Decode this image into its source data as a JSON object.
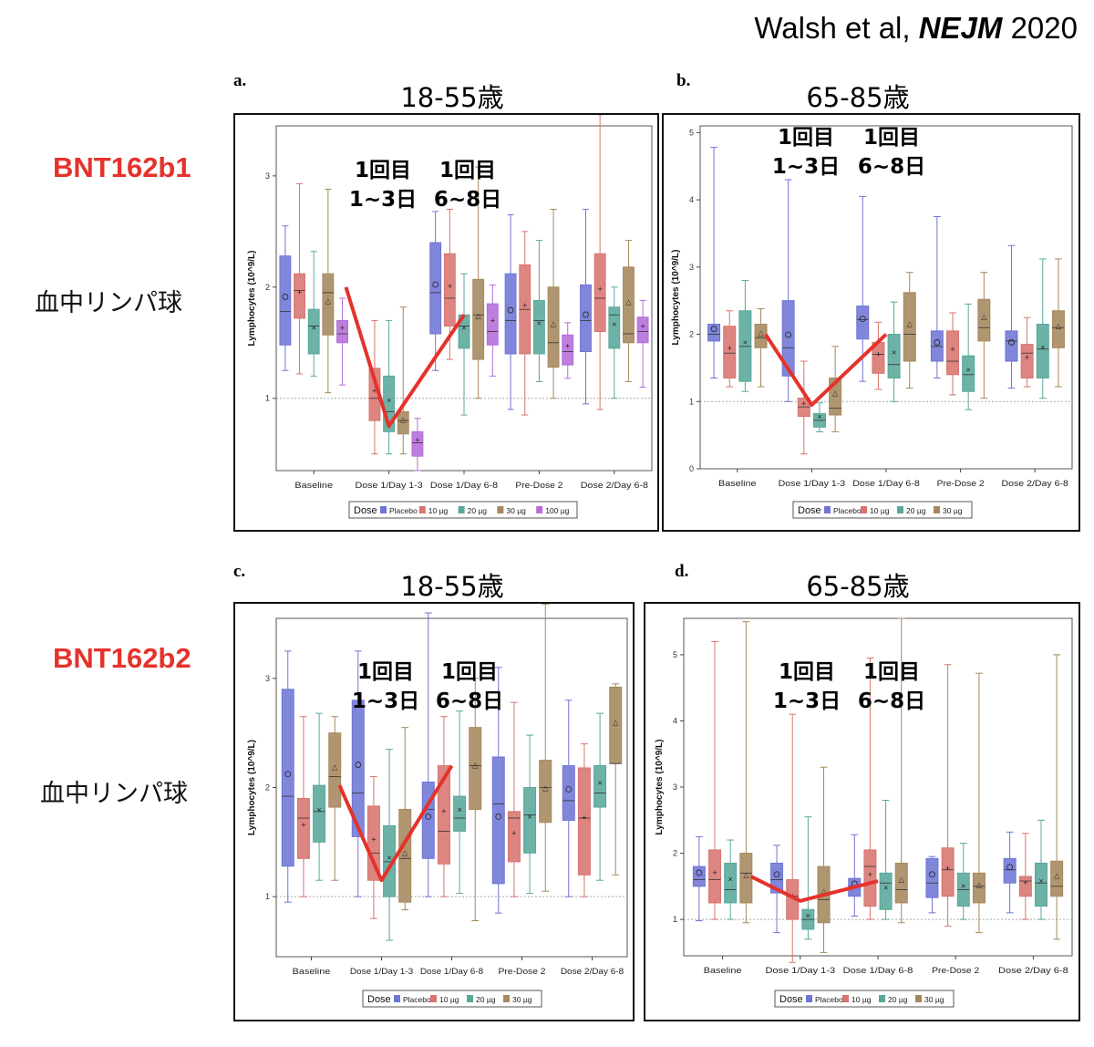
{
  "citation": {
    "authors": "Walsh et al, ",
    "journal": "NEJM",
    "year": " 2020"
  },
  "rows": [
    {
      "label": "BNT162b1",
      "sublabel": "血中リンパ球"
    },
    {
      "label": "BNT162b2",
      "sublabel": "血中リンパ球"
    }
  ],
  "colors": {
    "placebo": "#6f75d4",
    "d10": "#d8746f",
    "d20": "#59a79a",
    "d30": "#a5885d",
    "d100": "#b46cd9",
    "trend": "#e5322b",
    "row_label": "#e5322b"
  },
  "chart_data": [
    {
      "panel": "a.",
      "title": "18-55歳",
      "type": "box",
      "ylabel": "Lymphocytes (10^9/L)",
      "ylim": [
        0.35,
        3.45
      ],
      "yticks": [
        1,
        2,
        3
      ],
      "reference_line": 1,
      "categories": [
        "Baseline",
        "Dose 1/Day 1-3",
        "Dose 1/Day 6-8",
        "Pre-Dose 2",
        "Dose 2/Day 6-8"
      ],
      "legend_title": "Dose",
      "annotations": [
        {
          "line1": "1回目",
          "line2": "1~3日"
        },
        {
          "line1": "1回目",
          "line2": "6~8日"
        }
      ],
      "trend": [
        2.0,
        0.75,
        1.75
      ],
      "series": [
        {
          "name": "Placebo",
          "color": "#6f75d4",
          "boxes": [
            [
              1.25,
              1.48,
              1.78,
              2.28,
              2.55
            ],
            null,
            [
              1.25,
              1.58,
              1.95,
              2.4,
              2.68
            ],
            [
              0.9,
              1.4,
              1.7,
              2.12,
              2.65
            ],
            [
              0.95,
              1.42,
              1.7,
              2.02,
              2.7
            ]
          ]
        },
        {
          "name": "10 µg",
          "color": "#d8746f",
          "boxes": [
            [
              1.22,
              1.72,
              1.97,
              2.12,
              2.93
            ],
            [
              0.5,
              0.8,
              1.0,
              1.27,
              1.7
            ],
            [
              1.35,
              1.65,
              1.9,
              2.3,
              2.7
            ],
            [
              0.85,
              1.4,
              1.8,
              2.2,
              2.5
            ],
            [
              0.9,
              1.6,
              1.9,
              2.3,
              3.55
            ]
          ]
        },
        {
          "name": "20 µg",
          "color": "#59a79a",
          "boxes": [
            [
              1.2,
              1.4,
              1.65,
              1.8,
              2.32
            ],
            [
              0.5,
              0.7,
              0.88,
              1.2,
              1.7
            ],
            [
              0.85,
              1.45,
              1.65,
              1.75,
              2.12
            ],
            [
              1.15,
              1.4,
              1.7,
              1.88,
              2.42
            ],
            [
              1.0,
              1.45,
              1.75,
              1.82,
              2.0
            ]
          ]
        },
        {
          "name": "30 µg",
          "color": "#a5885d",
          "boxes": [
            [
              1.05,
              1.57,
              1.95,
              2.12,
              2.88
            ],
            [
              0.5,
              0.68,
              0.8,
              0.88,
              1.82
            ],
            [
              1.0,
              1.35,
              1.75,
              2.07,
              3.08
            ],
            [
              1.0,
              1.28,
              1.5,
              2.0,
              2.7
            ],
            [
              1.15,
              1.5,
              1.58,
              2.18,
              2.42
            ]
          ]
        },
        {
          "name": "100 µg",
          "color": "#b46cd9",
          "boxes": [
            [
              1.12,
              1.5,
              1.58,
              1.7,
              1.9
            ],
            [
              0.35,
              0.48,
              0.6,
              0.7,
              0.82
            ],
            [
              1.2,
              1.48,
              1.6,
              1.85,
              2.02
            ],
            [
              1.18,
              1.3,
              1.42,
              1.57,
              1.68
            ],
            [
              1.1,
              1.5,
              1.6,
              1.73,
              1.88
            ]
          ]
        }
      ]
    },
    {
      "panel": "b.",
      "title": "65-85歳",
      "type": "box",
      "ylabel": "Lymphocytes (10^9/L)",
      "ylim": [
        0,
        5.1
      ],
      "yticks": [
        0,
        1,
        2,
        3,
        4,
        5
      ],
      "reference_line": 1,
      "categories": [
        "Baseline",
        "Dose 1/Day 1-3",
        "Dose 1/Day 6-8",
        "Pre-Dose 2",
        "Dose 2/Day 6-8"
      ],
      "legend_title": "Dose",
      "annotations": [
        {
          "line1": "1回目",
          "line2": "1~3日"
        },
        {
          "line1": "1回目",
          "line2": "6~8日"
        }
      ],
      "trend": [
        2.0,
        0.95,
        2.0
      ],
      "series": [
        {
          "name": "Placebo",
          "color": "#6f75d4",
          "boxes": [
            [
              1.35,
              1.9,
              2.0,
              2.15,
              4.78
            ],
            [
              1.0,
              1.38,
              1.8,
              2.5,
              4.3
            ],
            [
              1.3,
              1.93,
              2.22,
              2.42,
              4.05
            ],
            [
              1.35,
              1.6,
              1.82,
              2.05,
              3.75
            ],
            [
              1.2,
              1.6,
              1.9,
              2.05,
              3.32
            ]
          ]
        },
        {
          "name": "10 µg",
          "color": "#d8746f",
          "boxes": [
            [
              1.22,
              1.35,
              1.72,
              2.12,
              2.35
            ],
            [
              0.22,
              0.78,
              0.92,
              1.05,
              1.6
            ],
            [
              1.18,
              1.42,
              1.7,
              1.88,
              2.18
            ],
            [
              1.1,
              1.4,
              1.6,
              2.05,
              2.32
            ],
            [
              1.22,
              1.35,
              1.72,
              1.85,
              2.25
            ]
          ]
        },
        {
          "name": "20 µg",
          "color": "#59a79a",
          "boxes": [
            [
              1.15,
              1.3,
              1.82,
              2.35,
              2.8
            ],
            [
              0.55,
              0.62,
              0.72,
              0.82,
              0.98
            ],
            [
              1.0,
              1.35,
              1.55,
              2.0,
              2.48
            ],
            [
              0.88,
              1.15,
              1.4,
              1.68,
              2.45
            ],
            [
              1.05,
              1.35,
              1.78,
              2.15,
              3.12
            ]
          ]
        },
        {
          "name": "30 µg",
          "color": "#a5885d",
          "boxes": [
            [
              1.22,
              1.8,
              1.95,
              2.15,
              2.38
            ],
            [
              0.55,
              0.8,
              0.9,
              1.35,
              1.82
            ],
            [
              1.2,
              1.6,
              2.0,
              2.62,
              2.92
            ],
            [
              1.05,
              1.9,
              2.1,
              2.52,
              2.92
            ],
            [
              1.22,
              1.8,
              2.1,
              2.35,
              3.12
            ]
          ]
        }
      ]
    },
    {
      "panel": "c.",
      "title": "18-55歳",
      "type": "box",
      "ylabel": "Lymphocytes (10^9/L)",
      "ylim": [
        0.45,
        3.55
      ],
      "yticks": [
        1,
        2,
        3
      ],
      "reference_line": 1,
      "categories": [
        "Baseline",
        "Dose 1/Day 1-3",
        "Dose 1/Day 6-8",
        "Pre-Dose 2",
        "Dose 2/Day 6-8"
      ],
      "legend_title": "Dose",
      "annotations": [
        {
          "line1": "1回目",
          "line2": "1~3日"
        },
        {
          "line1": "1回目",
          "line2": "6~8日"
        }
      ],
      "trend": [
        2.02,
        1.15,
        2.2
      ],
      "series": [
        {
          "name": "Placebo",
          "color": "#6f75d4",
          "boxes": [
            [
              0.95,
              1.28,
              1.92,
              2.9,
              3.25
            ],
            [
              1.0,
              1.55,
              1.95,
              2.8,
              3.25
            ],
            [
              1.0,
              1.35,
              1.8,
              2.05,
              3.6
            ],
            [
              0.85,
              1.12,
              1.85,
              2.28,
              3.1
            ],
            [
              1.0,
              1.7,
              1.88,
              2.2,
              2.8
            ]
          ]
        },
        {
          "name": "10 µg",
          "color": "#d8746f",
          "boxes": [
            [
              1.0,
              1.35,
              1.72,
              1.9,
              2.65
            ],
            [
              0.8,
              1.15,
              1.4,
              1.83,
              2.1
            ],
            [
              1.0,
              1.3,
              1.6,
              2.2,
              2.65
            ],
            [
              1.0,
              1.32,
              1.72,
              1.78,
              2.78
            ],
            [
              1.0,
              1.2,
              1.72,
              2.18,
              2.4
            ]
          ]
        },
        {
          "name": "20 µg",
          "color": "#59a79a",
          "boxes": [
            [
              1.15,
              1.5,
              1.78,
              2.02,
              2.68
            ],
            [
              0.6,
              1.0,
              1.32,
              1.65,
              2.35
            ],
            [
              1.03,
              1.6,
              1.72,
              1.92,
              2.7
            ],
            [
              1.03,
              1.4,
              1.75,
              2.0,
              2.48
            ],
            [
              1.15,
              1.82,
              1.95,
              2.2,
              2.68
            ]
          ]
        },
        {
          "name": "30 µg",
          "color": "#a5885d",
          "boxes": [
            [
              1.15,
              1.82,
              2.1,
              2.5,
              2.65
            ],
            [
              0.88,
              0.95,
              1.35,
              1.8,
              2.55
            ],
            [
              0.78,
              1.8,
              2.2,
              2.55,
              3.0
            ],
            [
              1.05,
              1.68,
              2.0,
              2.25,
              3.68
            ],
            [
              1.2,
              2.22,
              2.22,
              2.92,
              2.95
            ]
          ]
        }
      ]
    },
    {
      "panel": "d.",
      "title": "65-85歳",
      "type": "box",
      "ylabel": "Lymphocytes (10^9/L)",
      "ylim": [
        0.45,
        5.55
      ],
      "yticks": [
        1,
        2,
        3,
        4,
        5
      ],
      "reference_line": 1,
      "categories": [
        "Baseline",
        "Dose 1/Day 1-3",
        "Dose 1/Day 6-8",
        "Pre-Dose 2",
        "Dose 2/Day 6-8"
      ],
      "legend_title": "Dose",
      "annotations": [
        {
          "line1": "1回目",
          "line2": "1~3日"
        },
        {
          "line1": "1回目",
          "line2": "6~8日"
        }
      ],
      "trend": [
        1.65,
        1.28,
        1.58
      ],
      "series": [
        {
          "name": "Placebo",
          "color": "#6f75d4",
          "boxes": [
            [
              0.98,
              1.5,
              1.6,
              1.8,
              2.25
            ],
            [
              0.8,
              1.4,
              1.6,
              1.85,
              2.12
            ],
            [
              1.05,
              1.35,
              1.5,
              1.62,
              2.28
            ],
            [
              1.1,
              1.33,
              1.55,
              1.92,
              1.95
            ],
            [
              1.1,
              1.55,
              1.75,
              1.92,
              2.32
            ]
          ]
        },
        {
          "name": "10 µg",
          "color": "#d8746f",
          "boxes": [
            [
              1.0,
              1.25,
              1.6,
              2.05,
              5.2
            ],
            [
              0.35,
              1.0,
              1.35,
              1.6,
              4.1
            ],
            [
              1.0,
              1.2,
              1.8,
              2.05,
              4.95
            ],
            [
              0.9,
              1.35,
              1.75,
              2.08,
              4.85
            ],
            [
              1.0,
              1.35,
              1.58,
              1.65,
              2.3
            ]
          ]
        },
        {
          "name": "20 µg",
          "color": "#59a79a",
          "boxes": [
            [
              1.0,
              1.25,
              1.45,
              1.85,
              2.2
            ],
            [
              0.7,
              0.85,
              1.0,
              1.15,
              2.55
            ],
            [
              1.0,
              1.15,
              1.55,
              1.7,
              2.8
            ],
            [
              1.0,
              1.2,
              1.45,
              1.7,
              2.15
            ],
            [
              1.0,
              1.2,
              1.55,
              1.85,
              2.5
            ]
          ]
        },
        {
          "name": "30 µg",
          "color": "#a5885d",
          "boxes": [
            [
              0.95,
              1.25,
              1.7,
              2.0,
              5.5
            ],
            [
              0.5,
              0.95,
              1.3,
              1.8,
              3.3
            ],
            [
              0.95,
              1.25,
              1.45,
              1.85,
              5.55
            ],
            [
              0.8,
              1.25,
              1.5,
              1.7,
              4.72
            ],
            [
              0.7,
              1.35,
              1.5,
              1.88,
              5.0
            ]
          ]
        }
      ]
    }
  ]
}
